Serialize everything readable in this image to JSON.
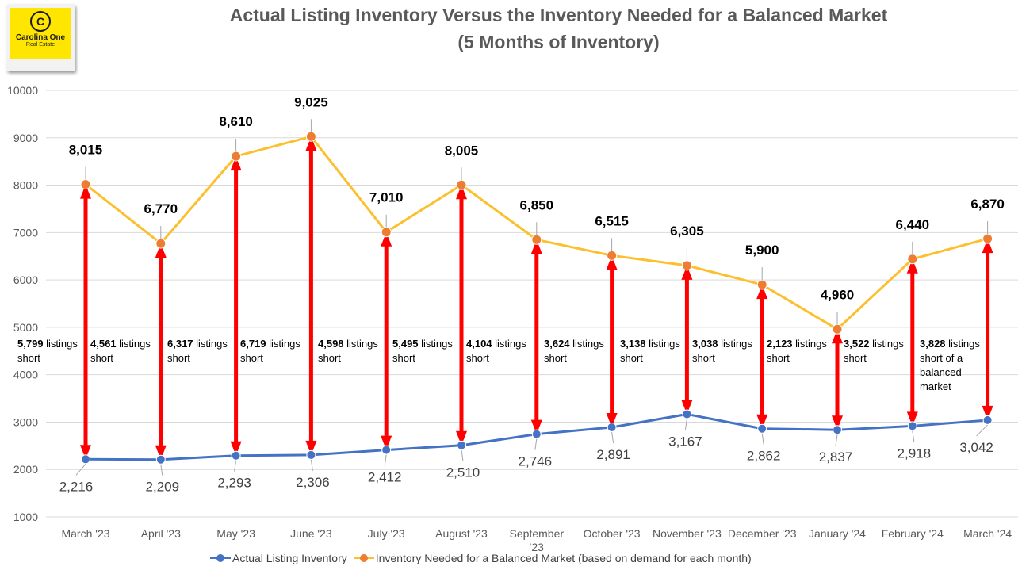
{
  "logo": {
    "name": "Carolina One",
    "sub": "Real Estate"
  },
  "chart_data": {
    "type": "line",
    "title": "Actual Listing Inventory Versus the Inventory Needed for a Balanced Market",
    "subtitle": "(5 Months of Inventory)",
    "categories": [
      "March '23",
      "April '23",
      "May '23",
      "June '23",
      "July '23",
      "August '23",
      "September '23",
      "October '23",
      "November '23",
      "December '23",
      "January '24",
      "February '24",
      "March '24"
    ],
    "series": [
      {
        "name": "Actual Listing Inventory",
        "color": "#4472c4",
        "values": [
          2216,
          2209,
          2293,
          2306,
          2412,
          2510,
          2746,
          2891,
          3167,
          2862,
          2837,
          2918,
          3042
        ],
        "labels": [
          "2,216",
          "2,209",
          "2,293",
          "2,306",
          "2,412",
          "2,510",
          "2,746",
          "2,891",
          "3,167",
          "2,862",
          "2,837",
          "2,918",
          "3,042"
        ]
      },
      {
        "name": "Inventory Needed for a Balanced Market (based on demand for each month)",
        "color": "#ed7d31",
        "line_color": "#fcc02e",
        "values": [
          8015,
          6770,
          8610,
          9025,
          7010,
          8005,
          6850,
          6515,
          6305,
          5900,
          4960,
          6440,
          6870
        ],
        "labels": [
          "8,015",
          "6,770",
          "8,610",
          "9,025",
          "7,010",
          "8,005",
          "6,850",
          "6,515",
          "6,305",
          "5,900",
          "4,960",
          "6,440",
          "6,870"
        ]
      }
    ],
    "annotations": [
      "5,799 listings short",
      "4,561 listings short",
      "6,317 listings short",
      "6,719 listings short",
      "4,598 listings short",
      "5,495 listings short",
      "4,104 listings short",
      "3,624 listings short",
      "3,138 listings short",
      "3,038 listings short",
      "2,123 listings short",
      "3,522 listings short",
      "3,828 listings short of a balanced market"
    ],
    "ylim": [
      1000,
      10000
    ],
    "yticks": [
      "1000",
      "2000",
      "3000",
      "4000",
      "5000",
      "6000",
      "7000",
      "8000",
      "9000",
      "10000"
    ],
    "arrow_color": "#ff0000",
    "grid": true,
    "legend": "bottom"
  }
}
